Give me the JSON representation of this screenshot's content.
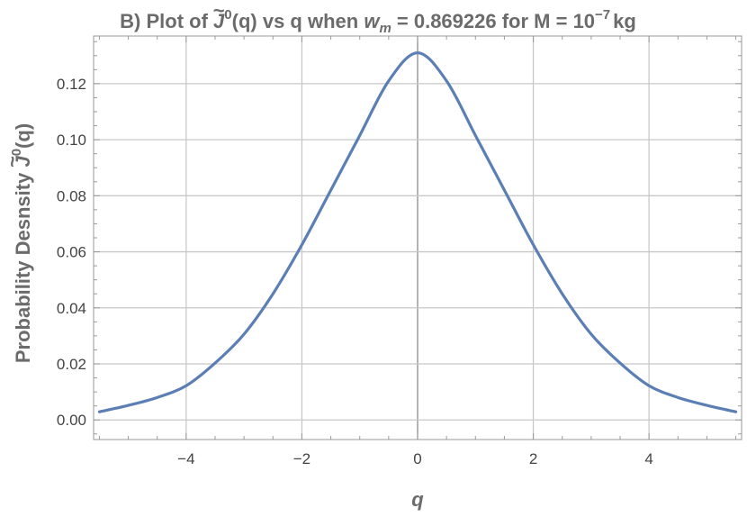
{
  "chart_data": {
    "type": "line",
    "title": {
      "prefix": "B) Plot of ",
      "symbol": "J",
      "symbol_mark": "~",
      "symbol_sup": "0",
      "after_symbol": "(q) vs q when ",
      "w_var": "w",
      "w_sub": "m",
      "w_value": " = 0.869226 for M = 10",
      "m_exp": "−7",
      "unit": "kg"
    },
    "xlabel": "q",
    "ylabel": {
      "text": "Probability  Desnsity ",
      "symbol": "J",
      "symbol_mark": "~",
      "symbol_sup": "0",
      "after": "(q)"
    },
    "xlim": [
      -5.6,
      5.6
    ],
    "ylim": [
      -0.007,
      0.137
    ],
    "x_ticks": [
      -4,
      -2,
      0,
      2,
      4
    ],
    "x_tick_labels": [
      "−4",
      "−2",
      "0",
      "2",
      "4"
    ],
    "y_ticks": [
      0.0,
      0.02,
      0.04,
      0.06,
      0.08,
      0.1,
      0.12
    ],
    "y_tick_labels": [
      "0.00",
      "0.02",
      "0.04",
      "0.06",
      "0.08",
      "0.10",
      "0.12"
    ],
    "grid": true,
    "line_color": "#5b7fb5",
    "series": [
      {
        "x": [
          -5.5,
          -5.0,
          -4.5,
          -4.0,
          -3.5,
          -3.0,
          -2.5,
          -2.0,
          -1.5,
          -1.0,
          -0.5,
          0.0,
          0.5,
          1.0,
          1.5,
          2.0,
          2.5,
          3.0,
          3.5,
          4.0,
          4.5,
          5.0,
          5.5
        ],
        "y": [
          0.0029,
          0.0052,
          0.008,
          0.0122,
          0.0203,
          0.0306,
          0.045,
          0.0625,
          0.082,
          0.1015,
          0.121,
          0.131,
          0.121,
          0.1015,
          0.082,
          0.0625,
          0.045,
          0.0306,
          0.0203,
          0.0122,
          0.008,
          0.0052,
          0.0029
        ]
      }
    ]
  }
}
